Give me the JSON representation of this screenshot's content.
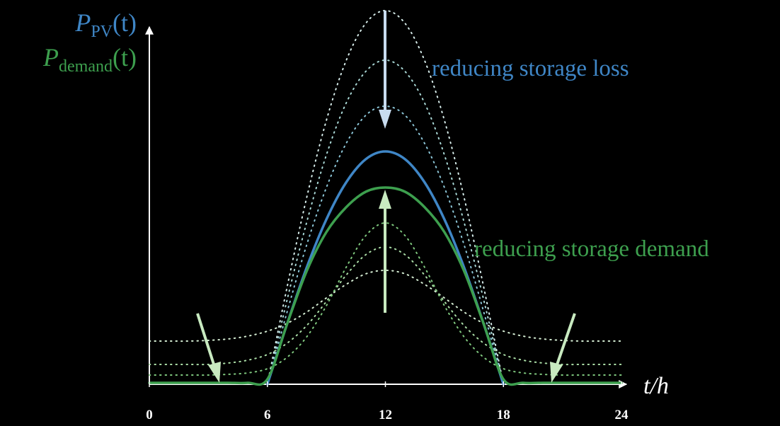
{
  "chart_data": {
    "type": "line",
    "y_labels": [
      {
        "main": "P",
        "sub": "PV",
        "tail": "(t)",
        "color": "#3f86c6"
      },
      {
        "main": "P",
        "sub": "demand",
        "tail": "(t)",
        "color": "#3d9f4e"
      }
    ],
    "xlabel": "t/h",
    "annotations": [
      {
        "text": "reducing storage loss",
        "color": "#3f86c6"
      },
      {
        "text": "reducing storage demand",
        "color": "#3d9f4e"
      }
    ],
    "x": [
      0,
      1,
      2,
      3,
      4,
      5,
      6,
      7,
      8,
      9,
      10,
      11,
      12,
      13,
      14,
      15,
      16,
      17,
      18,
      19,
      20,
      21,
      22,
      23,
      24
    ],
    "xlim": [
      0,
      24
    ],
    "xticks": [
      0,
      6,
      12,
      18,
      24
    ],
    "ylim": [
      0,
      5.43
    ],
    "series": [
      {
        "color": "#d6ecea",
        "style": "dotted",
        "values": [
          null,
          null,
          null,
          null,
          null,
          null,
          0,
          1.37,
          2.64,
          3.73,
          4.57,
          5.1,
          5.28,
          5.1,
          4.57,
          3.73,
          2.64,
          1.37,
          0,
          null,
          null,
          null,
          null,
          null,
          null
        ]
      },
      {
        "color": "#a9d8d6",
        "style": "dotted",
        "values": [
          null,
          null,
          null,
          null,
          null,
          null,
          0,
          1.19,
          2.29,
          3.24,
          3.97,
          4.42,
          4.58,
          4.42,
          3.97,
          3.24,
          2.29,
          1.19,
          0,
          null,
          null,
          null,
          null,
          null,
          null
        ]
      },
      {
        "color": "#8cc6d8",
        "style": "dotted",
        "values": [
          null,
          null,
          null,
          null,
          null,
          null,
          0,
          1.02,
          1.97,
          2.78,
          3.4,
          3.8,
          3.93,
          3.8,
          3.4,
          2.78,
          1.97,
          1.02,
          0,
          null,
          null,
          null,
          null,
          null,
          null
        ]
      },
      {
        "color": "#3f86c6",
        "style": "solid",
        "values": [
          null,
          null,
          null,
          null,
          null,
          null,
          0,
          0.85,
          1.65,
          2.33,
          2.85,
          3.18,
          3.29,
          3.18,
          2.85,
          2.33,
          1.65,
          0.85,
          0,
          null,
          null,
          null,
          null,
          null,
          null
        ]
      },
      {
        "color": "#d4ecd2",
        "style": "dotted",
        "values": [
          0.61,
          0.61,
          0.61,
          0.62,
          0.64,
          0.68,
          0.75,
          0.86,
          1.02,
          1.22,
          1.41,
          1.56,
          1.61,
          1.56,
          1.41,
          1.22,
          1.02,
          0.86,
          0.75,
          0.68,
          0.64,
          0.62,
          0.61,
          0.61,
          0.61
        ]
      },
      {
        "color": "#aadda6",
        "style": "dotted",
        "values": [
          0.28,
          0.28,
          0.28,
          0.28,
          0.3,
          0.34,
          0.42,
          0.58,
          0.83,
          1.17,
          1.54,
          1.83,
          1.94,
          1.83,
          1.54,
          1.17,
          0.83,
          0.58,
          0.42,
          0.34,
          0.3,
          0.28,
          0.28,
          0.28,
          0.28
        ]
      },
      {
        "color": "#7fc87e",
        "style": "dotted",
        "values": [
          0.13,
          0.13,
          0.13,
          0.13,
          0.14,
          0.16,
          0.22,
          0.38,
          0.67,
          1.11,
          1.65,
          2.1,
          2.28,
          2.1,
          1.65,
          1.11,
          0.67,
          0.38,
          0.22,
          0.16,
          0.14,
          0.13,
          0.13,
          0.13,
          0.13
        ]
      },
      {
        "color": "#3d9f4e",
        "style": "solid",
        "values": [
          0.02,
          0.02,
          0.02,
          0.02,
          0.02,
          0.02,
          0.07,
          0.85,
          1.6,
          2.15,
          2.5,
          2.72,
          2.78,
          2.72,
          2.5,
          2.15,
          1.6,
          0.85,
          0.07,
          0.02,
          0.02,
          0.02,
          0.02,
          0.02,
          0.02
        ]
      }
    ]
  }
}
